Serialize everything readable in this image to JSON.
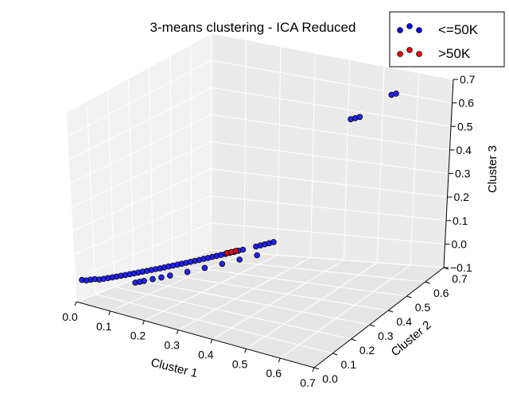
{
  "chart_data": {
    "type": "scatter",
    "projection": "3d",
    "title": "3-means clustering - ICA Reduced",
    "xlabel": "Cluster 1",
    "ylabel": "Cluster 2",
    "zlabel": "Cluster 3",
    "xlim": [
      0.0,
      0.7
    ],
    "ylim": [
      0.0,
      0.7
    ],
    "zlim": [
      -0.1,
      0.7
    ],
    "xticks": [
      "0.0",
      "0.1",
      "0.2",
      "0.3",
      "0.4",
      "0.5",
      "0.6",
      "0.7"
    ],
    "yticks": [
      "0.0",
      "0.1",
      "0.2",
      "0.3",
      "0.4",
      "0.5",
      "0.6",
      "0.7"
    ],
    "zticks": [
      "−0.1",
      "0.0",
      "0.1",
      "0.2",
      "0.3",
      "0.4",
      "0.5",
      "0.6",
      "0.7"
    ],
    "grid": true,
    "legend_position": "top-right",
    "series": [
      {
        "name": "<=50K",
        "color": "#0000ff",
        "points": [
          [
            0.02,
            0.0,
            0.0
          ],
          [
            0.03,
            0.005,
            0.0
          ],
          [
            0.04,
            0.01,
            0.005
          ],
          [
            0.05,
            0.015,
            0.01
          ],
          [
            0.06,
            0.02,
            0.01
          ],
          [
            0.07,
            0.025,
            0.015
          ],
          [
            0.08,
            0.03,
            0.02
          ],
          [
            0.09,
            0.035,
            0.025
          ],
          [
            0.1,
            0.04,
            0.03
          ],
          [
            0.11,
            0.045,
            0.035
          ],
          [
            0.12,
            0.05,
            0.04
          ],
          [
            0.13,
            0.055,
            0.045
          ],
          [
            0.14,
            0.06,
            0.05
          ],
          [
            0.15,
            0.065,
            0.055
          ],
          [
            0.16,
            0.07,
            0.06
          ],
          [
            0.17,
            0.075,
            0.065
          ],
          [
            0.18,
            0.08,
            0.07
          ],
          [
            0.19,
            0.085,
            0.075
          ],
          [
            0.2,
            0.09,
            0.08
          ],
          [
            0.21,
            0.095,
            0.085
          ],
          [
            0.22,
            0.1,
            0.09
          ],
          [
            0.23,
            0.105,
            0.095
          ],
          [
            0.24,
            0.11,
            0.1
          ],
          [
            0.25,
            0.115,
            0.105
          ],
          [
            0.26,
            0.12,
            0.11
          ],
          [
            0.27,
            0.125,
            0.115
          ],
          [
            0.28,
            0.13,
            0.12
          ],
          [
            0.29,
            0.135,
            0.125
          ],
          [
            0.3,
            0.14,
            0.13
          ],
          [
            0.31,
            0.145,
            0.135
          ],
          [
            0.32,
            0.15,
            0.14
          ],
          [
            0.33,
            0.155,
            0.145
          ],
          [
            0.34,
            0.16,
            0.15
          ],
          [
            0.35,
            0.165,
            0.155
          ],
          [
            0.36,
            0.17,
            0.16
          ],
          [
            0.37,
            0.175,
            0.165
          ],
          [
            0.38,
            0.18,
            0.17
          ],
          [
            0.39,
            0.185,
            0.175
          ],
          [
            0.42,
            0.2,
            0.19
          ],
          [
            0.43,
            0.205,
            0.195
          ],
          [
            0.44,
            0.21,
            0.2
          ],
          [
            0.45,
            0.215,
            0.205
          ],
          [
            0.46,
            0.22,
            0.21
          ],
          [
            0.12,
            0.1,
            -0.01
          ],
          [
            0.13,
            0.105,
            -0.005
          ],
          [
            0.14,
            0.11,
            0.0
          ],
          [
            0.16,
            0.12,
            0.01
          ],
          [
            0.18,
            0.13,
            0.02
          ],
          [
            0.2,
            0.14,
            0.03
          ],
          [
            0.24,
            0.16,
            0.05
          ],
          [
            0.28,
            0.18,
            0.07
          ],
          [
            0.32,
            0.2,
            0.09
          ],
          [
            0.36,
            0.22,
            0.11
          ],
          [
            0.4,
            0.24,
            0.13
          ],
          [
            0.55,
            0.45,
            0.62
          ],
          [
            0.56,
            0.455,
            0.625
          ],
          [
            0.57,
            0.46,
            0.63
          ],
          [
            0.62,
            0.53,
            0.7
          ],
          [
            0.63,
            0.535,
            0.705
          ]
        ]
      },
      {
        "name": ">50K",
        "color": "#ff0000",
        "points": [
          [
            0.355,
            0.165,
            0.16
          ],
          [
            0.365,
            0.17,
            0.165
          ],
          [
            0.375,
            0.175,
            0.17
          ]
        ]
      }
    ]
  }
}
